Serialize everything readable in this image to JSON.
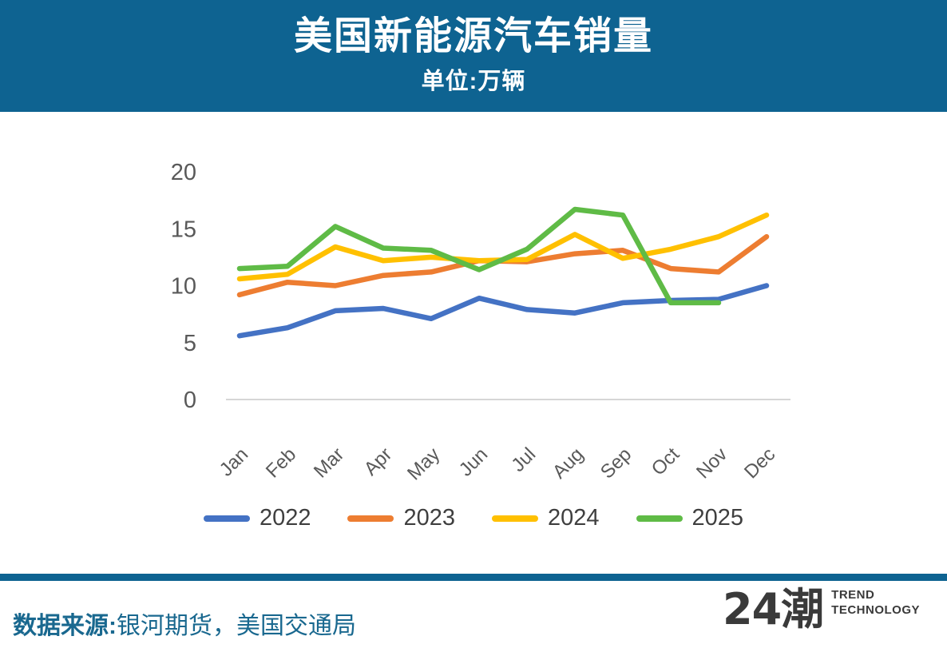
{
  "header": {
    "title": "美国新能源汽车销量",
    "subtitle": "单位:万辆",
    "bg_color": "#0E6391"
  },
  "chart_data": {
    "type": "line",
    "title": "美国新能源汽车销量",
    "unit_label": "单位:万辆",
    "categories": [
      "Jan",
      "Feb",
      "Mar",
      "Apr",
      "May",
      "Jun",
      "Jul",
      "Aug",
      "Sep",
      "Oct",
      "Nov",
      "Dec"
    ],
    "ylim": [
      0,
      20
    ],
    "yticks": [
      0,
      5,
      10,
      15,
      20
    ],
    "grid": false,
    "legend_position": "bottom",
    "axis_text_color": "#595959",
    "baseline_color": "#D6D6D6",
    "series": [
      {
        "name": "2022",
        "color": "#4472C4",
        "values": [
          5.6,
          6.3,
          7.8,
          8.0,
          7.1,
          8.9,
          7.9,
          7.6,
          8.5,
          8.7,
          8.8,
          10.0
        ]
      },
      {
        "name": "2023",
        "color": "#ED7D31",
        "values": [
          9.2,
          10.3,
          10.0,
          10.9,
          11.2,
          12.2,
          12.1,
          12.8,
          13.1,
          11.5,
          11.2,
          14.3
        ]
      },
      {
        "name": "2024",
        "color": "#FFC000",
        "values": [
          10.6,
          11.0,
          13.4,
          12.2,
          12.5,
          12.2,
          12.3,
          14.5,
          12.4,
          13.2,
          14.3,
          16.2
        ]
      },
      {
        "name": "2025",
        "color": "#5FBB46",
        "values": [
          11.5,
          11.7,
          15.2,
          13.3,
          13.1,
          11.4,
          13.2,
          16.7,
          16.2,
          8.5,
          8.5,
          null
        ]
      }
    ]
  },
  "footer": {
    "source_label": "数据来源:",
    "source_value": "银河期货，美国交通局",
    "logo_text": "24潮",
    "logo_line1": "TREND",
    "logo_line2": "TECHNOLOGY"
  }
}
